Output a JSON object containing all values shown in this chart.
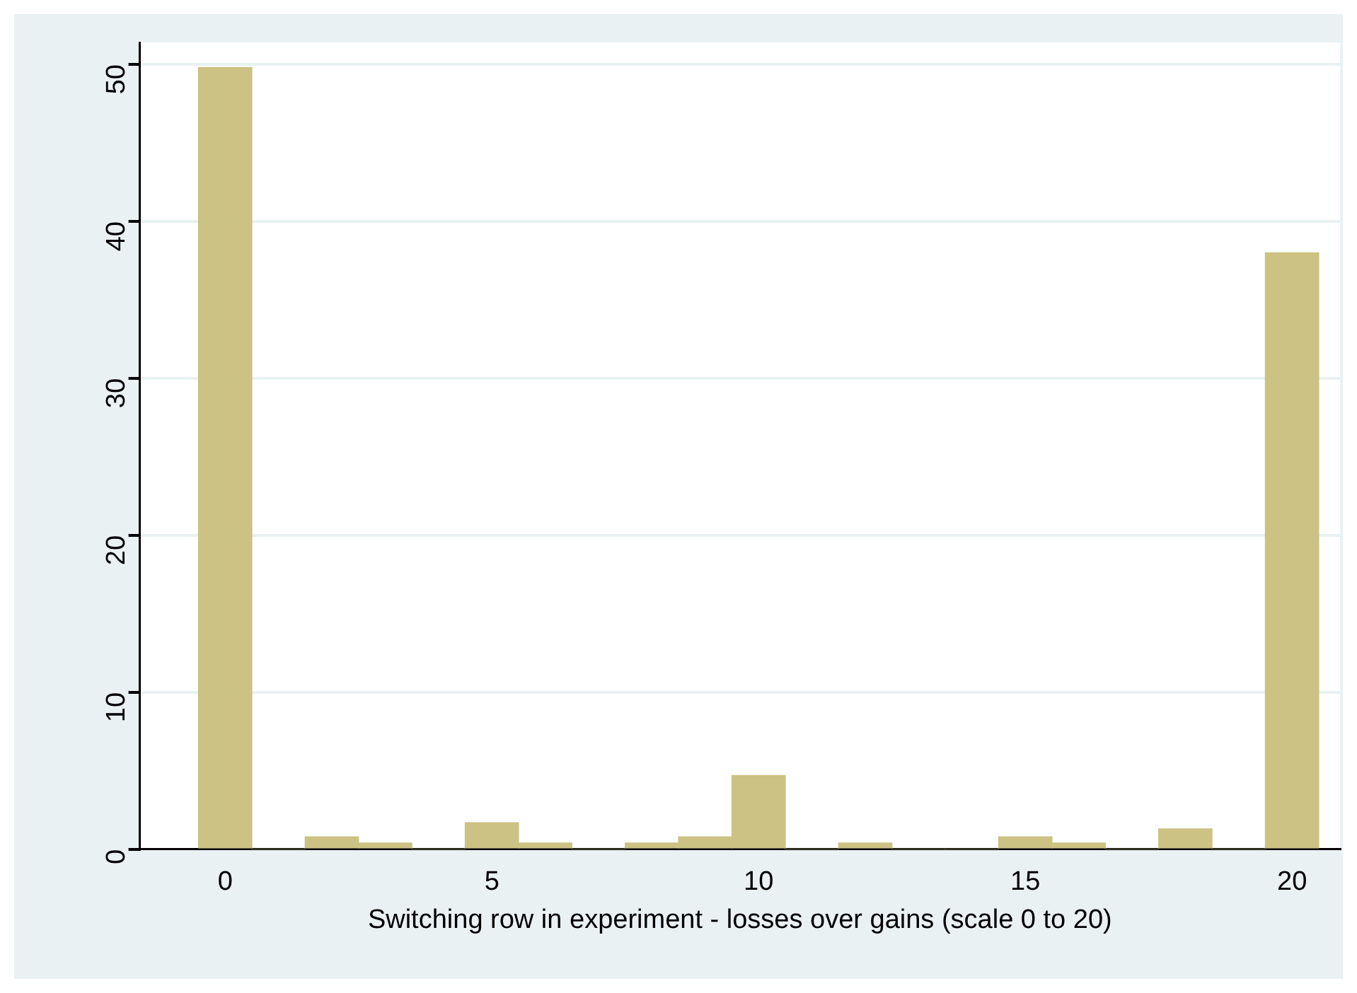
{
  "chart_data": {
    "type": "histogram",
    "xlabel": "Switching row in experiment - losses over gains (scale 0 to 20)",
    "bins": [
      -0.5,
      0.5,
      1.5,
      2.5,
      3.5,
      4.5,
      5.5,
      6.5,
      7.5,
      8.5,
      9.5,
      10.5,
      11.5,
      12.5,
      13.5,
      14.5,
      15.5,
      16.5,
      17.5,
      18.5,
      19.5,
      20.5
    ],
    "values": [
      49.8,
      0,
      0.8,
      0.4,
      0,
      1.7,
      0.4,
      0,
      0.4,
      0.8,
      4.7,
      0,
      0.4,
      0,
      0,
      0.8,
      0.4,
      0,
      1.3,
      0,
      38.0
    ],
    "color": "#cbc283",
    "xlim": [
      -1.6,
      20.9
    ],
    "xticks": [
      0,
      5,
      10,
      15,
      20
    ],
    "ylim": [
      0,
      51.4
    ],
    "yticks": [
      0,
      10,
      20,
      30,
      40,
      50
    ],
    "grid": "y",
    "legend": false
  }
}
